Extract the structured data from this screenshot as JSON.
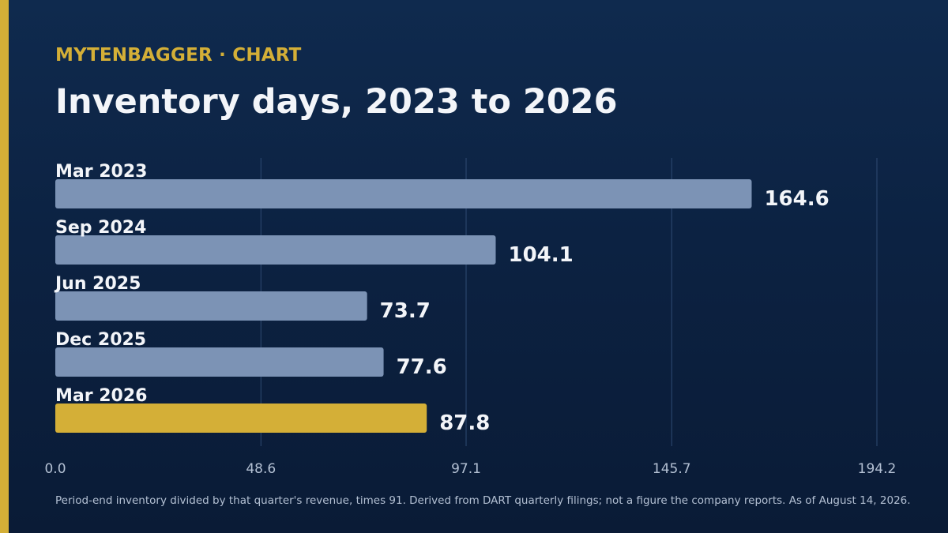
{
  "header": {
    "brand": "MYTENBAGGER · CHART",
    "title": "Inventory days, 2023 to 2026"
  },
  "footnote": "Period-end inventory divided by that quarter's revenue, times 91. Derived from DART quarterly filings; not a figure the company reports. As of August 14, 2026.",
  "colors": {
    "accent": "#d4af37",
    "bar": "#7c93b5",
    "highlight_bar": "#d4af37",
    "label_text": "#f3f5f9",
    "tick_text": "#b3c0d3",
    "grid": "#2e4a72"
  },
  "chart_data": {
    "type": "bar",
    "orientation": "horizontal",
    "categories": [
      "Mar 2023",
      "Sep 2024",
      "Jun 2025",
      "Dec 2025",
      "Mar 2026"
    ],
    "values": [
      164.6,
      104.1,
      73.7,
      77.6,
      87.8
    ],
    "value_labels": [
      "164.6",
      "104.1",
      "73.7",
      "77.6",
      "87.8"
    ],
    "highlight_index": 4,
    "xlim": [
      0,
      194.2
    ],
    "xticks": [
      0,
      48.6,
      97.1,
      145.7,
      194.2
    ],
    "xtick_labels": [
      "0.0",
      "48.6",
      "97.1",
      "145.7",
      "194.2"
    ],
    "grid": true,
    "legend": false,
    "title": "Inventory days, 2023 to 2026",
    "xlabel": "",
    "ylabel": ""
  }
}
